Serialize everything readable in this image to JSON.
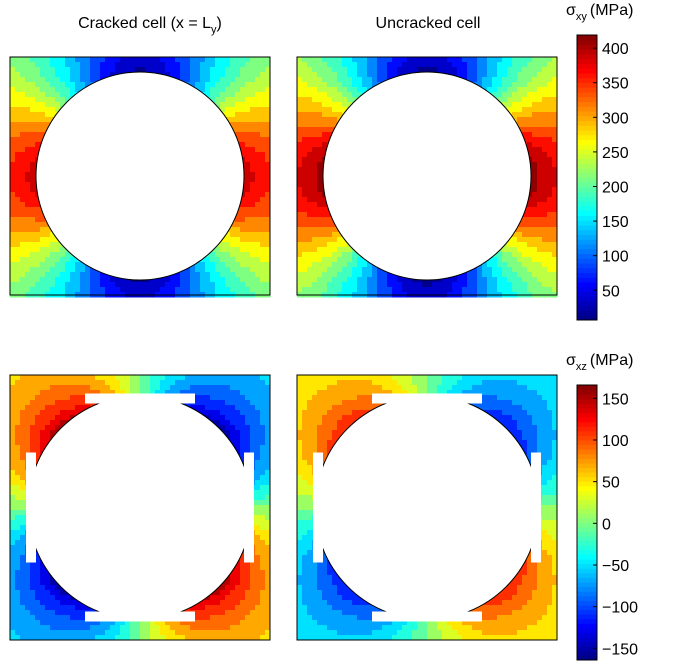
{
  "column_titles": [
    {
      "text": "Cracked cell (x = L",
      "sub": "y",
      "tail": ")"
    },
    {
      "text": "Uncracked cell"
    }
  ],
  "colorbars": [
    {
      "symbol": "σ",
      "sub": "xy",
      "unit": "(MPa)",
      "lim": [
        7,
        419
      ],
      "ticks": [
        50,
        100,
        150,
        200,
        250,
        300,
        350,
        400
      ]
    },
    {
      "symbol": "σ",
      "sub": "xz",
      "unit": "(MPa)",
      "lim": [
        -164,
        166
      ],
      "ticks": [
        {
          "value": -150,
          "label": "−150"
        },
        {
          "value": -100,
          "label": "−100"
        },
        {
          "value": -50,
          "label": "−50"
        },
        0,
        50,
        100,
        150
      ]
    }
  ]
}
